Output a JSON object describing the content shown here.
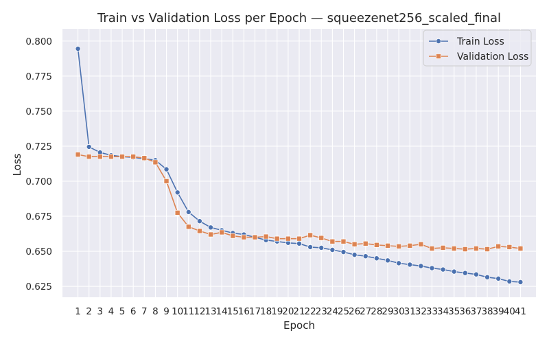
{
  "chart_data": {
    "type": "line",
    "title": "Train vs Validation Loss per Epoch — squeezenet256_scaled_final",
    "xlabel": "Epoch",
    "ylabel": "Loss",
    "x": [
      1,
      2,
      3,
      4,
      5,
      6,
      7,
      8,
      9,
      10,
      11,
      12,
      13,
      14,
      15,
      16,
      17,
      18,
      19,
      20,
      21,
      22,
      23,
      24,
      25,
      26,
      27,
      28,
      29,
      30,
      31,
      32,
      33,
      34,
      35,
      36,
      37,
      38,
      39,
      40,
      41
    ],
    "xlim": [
      -0.4,
      42.4
    ],
    "ylim": [
      0.6172,
      0.8087
    ],
    "yticks": [
      0.625,
      0.65,
      0.675,
      0.7,
      0.725,
      0.75,
      0.775,
      0.8
    ],
    "ytick_labels": [
      "0.625",
      "0.650",
      "0.675",
      "0.700",
      "0.725",
      "0.750",
      "0.775",
      "0.800"
    ],
    "grid": true,
    "legend_position": "top-right",
    "colors": {
      "train": "#4c72b0",
      "validation": "#dd8452",
      "plot_bg": "#eaeaf2",
      "grid": "#ffffff"
    },
    "series": [
      {
        "name": "Train Loss",
        "marker": "circle",
        "values": [
          0.7945,
          0.7245,
          0.7205,
          0.7185,
          0.7175,
          0.717,
          0.716,
          0.715,
          0.7085,
          0.692,
          0.678,
          0.6715,
          0.667,
          0.665,
          0.663,
          0.662,
          0.66,
          0.658,
          0.657,
          0.656,
          0.6555,
          0.653,
          0.6525,
          0.651,
          0.6495,
          0.6475,
          0.6465,
          0.645,
          0.6435,
          0.6415,
          0.6405,
          0.6395,
          0.638,
          0.637,
          0.6355,
          0.6345,
          0.6335,
          0.6315,
          0.6305,
          0.6285,
          0.628
        ]
      },
      {
        "name": "Validation Loss",
        "marker": "square",
        "values": [
          0.719,
          0.7175,
          0.7175,
          0.7175,
          0.7175,
          0.7175,
          0.7165,
          0.7135,
          0.7,
          0.6775,
          0.6675,
          0.6645,
          0.662,
          0.6635,
          0.661,
          0.66,
          0.66,
          0.6605,
          0.659,
          0.659,
          0.659,
          0.6615,
          0.6595,
          0.657,
          0.657,
          0.655,
          0.6555,
          0.6545,
          0.654,
          0.6535,
          0.654,
          0.655,
          0.652,
          0.6525,
          0.652,
          0.6515,
          0.652,
          0.6515,
          0.6535,
          0.653,
          0.652
        ]
      }
    ]
  }
}
